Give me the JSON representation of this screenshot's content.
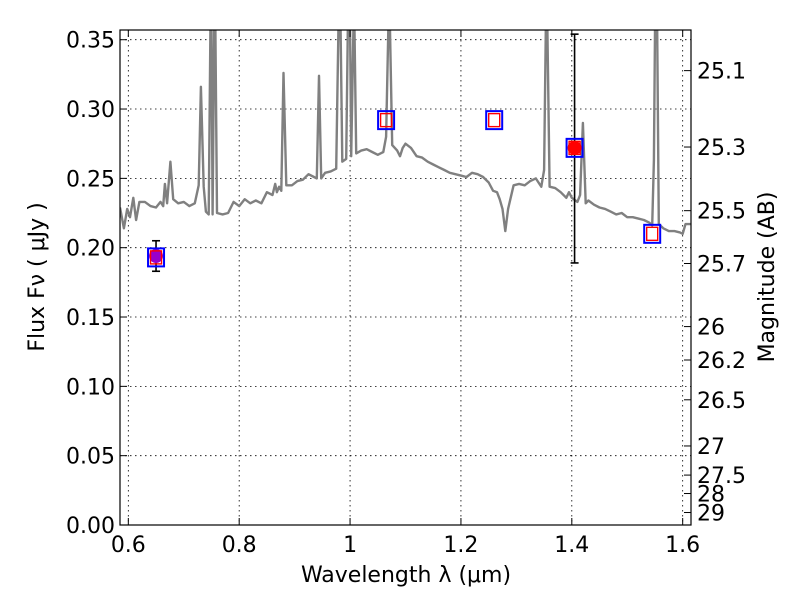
{
  "chart_data": {
    "type": "line",
    "xlabel": "Wavelength  λ (μm)",
    "ylabel": "Flux  Fν  ( μJy )",
    "y2label": "Magnitude (AB)",
    "xlim": [
      0.585,
      1.615
    ],
    "ylim": [
      0.0,
      0.357
    ],
    "grid": true,
    "x_ticks": [
      {
        "value": 0.6,
        "label": "0.6"
      },
      {
        "value": 0.8,
        "label": "0.8"
      },
      {
        "value": 1.0,
        "label": "1"
      },
      {
        "value": 1.2,
        "label": "1.2"
      },
      {
        "value": 1.4,
        "label": "1.4"
      },
      {
        "value": 1.6,
        "label": "1.6"
      }
    ],
    "y_ticks": [
      {
        "value": 0.0,
        "label": "0.00"
      },
      {
        "value": 0.05,
        "label": "0.05"
      },
      {
        "value": 0.1,
        "label": "0.10"
      },
      {
        "value": 0.15,
        "label": "0.15"
      },
      {
        "value": 0.2,
        "label": "0.20"
      },
      {
        "value": 0.25,
        "label": "0.25"
      },
      {
        "value": 0.3,
        "label": "0.30"
      },
      {
        "value": 0.35,
        "label": "0.35"
      }
    ],
    "y2_ticks": [
      {
        "label": "25.1",
        "flux": 0.3277
      },
      {
        "label": "25.3",
        "flux": 0.2726
      },
      {
        "label": "25.5",
        "flux": 0.2267
      },
      {
        "label": "25.7",
        "flux": 0.1886
      },
      {
        "label": "26",
        "flux": 0.1431
      },
      {
        "label": "26.2",
        "flux": 0.119
      },
      {
        "label": "26.5",
        "flux": 0.0903
      },
      {
        "label": "27",
        "flux": 0.057
      },
      {
        "label": "27.5",
        "flux": 0.036
      },
      {
        "label": "28",
        "flux": 0.0227
      },
      {
        "label": "29",
        "flux": 0.009
      }
    ],
    "model_spectrum": {
      "color": "#808080",
      "points": [
        [
          0.585,
          0.229
        ],
        [
          0.592,
          0.214
        ],
        [
          0.598,
          0.228
        ],
        [
          0.603,
          0.222
        ],
        [
          0.609,
          0.236
        ],
        [
          0.614,
          0.22
        ],
        [
          0.62,
          0.233
        ],
        [
          0.63,
          0.233
        ],
        [
          0.64,
          0.23
        ],
        [
          0.65,
          0.229
        ],
        [
          0.658,
          0.233
        ],
        [
          0.663,
          0.23
        ],
        [
          0.666,
          0.246
        ],
        [
          0.67,
          0.232
        ],
        [
          0.676,
          0.262
        ],
        [
          0.681,
          0.235
        ],
        [
          0.69,
          0.232
        ],
        [
          0.7,
          0.233
        ],
        [
          0.71,
          0.23
        ],
        [
          0.72,
          0.232
        ],
        [
          0.727,
          0.245
        ],
        [
          0.731,
          0.316
        ],
        [
          0.736,
          0.244
        ],
        [
          0.74,
          0.226
        ],
        [
          0.745,
          0.224
        ],
        [
          0.748,
          0.357
        ],
        [
          0.75,
          0.357
        ],
        [
          0.752,
          0.224
        ],
        [
          0.755,
          0.357
        ],
        [
          0.757,
          0.357
        ],
        [
          0.76,
          0.225
        ],
        [
          0.77,
          0.224
        ],
        [
          0.78,
          0.225
        ],
        [
          0.79,
          0.233
        ],
        [
          0.8,
          0.23
        ],
        [
          0.81,
          0.235
        ],
        [
          0.82,
          0.232
        ],
        [
          0.83,
          0.234
        ],
        [
          0.84,
          0.232
        ],
        [
          0.85,
          0.24
        ],
        [
          0.86,
          0.238
        ],
        [
          0.865,
          0.246
        ],
        [
          0.868,
          0.24
        ],
        [
          0.872,
          0.244
        ],
        [
          0.876,
          0.241
        ],
        [
          0.88,
          0.326
        ],
        [
          0.885,
          0.245
        ],
        [
          0.895,
          0.245
        ],
        [
          0.905,
          0.248
        ],
        [
          0.915,
          0.249
        ],
        [
          0.925,
          0.253
        ],
        [
          0.935,
          0.251
        ],
        [
          0.94,
          0.25
        ],
        [
          0.944,
          0.324
        ],
        [
          0.948,
          0.25
        ],
        [
          0.955,
          0.254
        ],
        [
          0.965,
          0.255
        ],
        [
          0.975,
          0.257
        ],
        [
          0.979,
          0.357
        ],
        [
          0.983,
          0.357
        ],
        [
          0.986,
          0.262
        ],
        [
          0.993,
          0.264
        ],
        [
          0.996,
          0.357
        ],
        [
          1.0,
          0.357
        ],
        [
          1.002,
          0.266
        ],
        [
          1.006,
          0.357
        ],
        [
          1.008,
          0.357
        ],
        [
          1.011,
          0.268
        ],
        [
          1.02,
          0.27
        ],
        [
          1.03,
          0.271
        ],
        [
          1.04,
          0.269
        ],
        [
          1.05,
          0.267
        ],
        [
          1.06,
          0.269
        ],
        [
          1.065,
          0.28
        ],
        [
          1.069,
          0.357
        ],
        [
          1.072,
          0.357
        ],
        [
          1.076,
          0.274
        ],
        [
          1.085,
          0.27
        ],
        [
          1.09,
          0.266
        ],
        [
          1.095,
          0.272
        ],
        [
          1.1,
          0.275
        ],
        [
          1.11,
          0.272
        ],
        [
          1.12,
          0.266
        ],
        [
          1.13,
          0.265
        ],
        [
          1.14,
          0.262
        ],
        [
          1.15,
          0.26
        ],
        [
          1.16,
          0.258
        ],
        [
          1.17,
          0.256
        ],
        [
          1.18,
          0.254
        ],
        [
          1.19,
          0.253
        ],
        [
          1.2,
          0.252
        ],
        [
          1.21,
          0.251
        ],
        [
          1.22,
          0.254
        ],
        [
          1.23,
          0.253
        ],
        [
          1.24,
          0.251
        ],
        [
          1.25,
          0.247
        ],
        [
          1.258,
          0.241
        ],
        [
          1.265,
          0.24
        ],
        [
          1.27,
          0.235
        ],
        [
          1.275,
          0.228
        ],
        [
          1.28,
          0.212
        ],
        [
          1.285,
          0.228
        ],
        [
          1.295,
          0.245
        ],
        [
          1.305,
          0.246
        ],
        [
          1.315,
          0.245
        ],
        [
          1.325,
          0.248
        ],
        [
          1.335,
          0.25
        ],
        [
          1.34,
          0.247
        ],
        [
          1.345,
          0.244
        ],
        [
          1.35,
          0.256
        ],
        [
          1.353,
          0.357
        ],
        [
          1.356,
          0.357
        ],
        [
          1.36,
          0.244
        ],
        [
          1.37,
          0.243
        ],
        [
          1.38,
          0.24
        ],
        [
          1.39,
          0.236
        ],
        [
          1.395,
          0.24
        ],
        [
          1.4,
          0.236
        ],
        [
          1.41,
          0.233
        ],
        [
          1.415,
          0.238
        ],
        [
          1.42,
          0.29
        ],
        [
          1.425,
          0.232
        ],
        [
          1.43,
          0.234
        ],
        [
          1.44,
          0.231
        ],
        [
          1.45,
          0.229
        ],
        [
          1.46,
          0.228
        ],
        [
          1.47,
          0.226
        ],
        [
          1.48,
          0.224
        ],
        [
          1.49,
          0.225
        ],
        [
          1.5,
          0.222
        ],
        [
          1.51,
          0.222
        ],
        [
          1.52,
          0.221
        ],
        [
          1.53,
          0.22
        ],
        [
          1.54,
          0.218
        ],
        [
          1.545,
          0.216
        ],
        [
          1.548,
          0.263
        ],
        [
          1.55,
          0.357
        ],
        [
          1.554,
          0.357
        ],
        [
          1.557,
          0.217
        ],
        [
          1.565,
          0.214
        ],
        [
          1.575,
          0.212
        ],
        [
          1.585,
          0.212
        ],
        [
          1.595,
          0.211
        ],
        [
          1.6,
          0.21
        ],
        [
          1.605,
          0.217
        ],
        [
          1.615,
          0.217
        ]
      ]
    },
    "model_photometry": {
      "marker": "open-square",
      "edge_color": "#0000ff",
      "inner_color": "#ff0000",
      "points": [
        {
          "x": 0.65,
          "y": 0.193
        },
        {
          "x": 1.065,
          "y": 0.292
        },
        {
          "x": 1.26,
          "y": 0.292
        },
        {
          "x": 1.405,
          "y": 0.272
        },
        {
          "x": 1.545,
          "y": 0.21
        }
      ]
    },
    "observed": {
      "points": [
        {
          "x": 0.65,
          "y": 0.194,
          "err_low": 0.183,
          "err_high": 0.205,
          "color": "#9900cc"
        },
        {
          "x": 1.405,
          "y": 0.272,
          "err_low": 0.189,
          "err_high": 0.354,
          "color": "#ff0000"
        }
      ]
    }
  }
}
